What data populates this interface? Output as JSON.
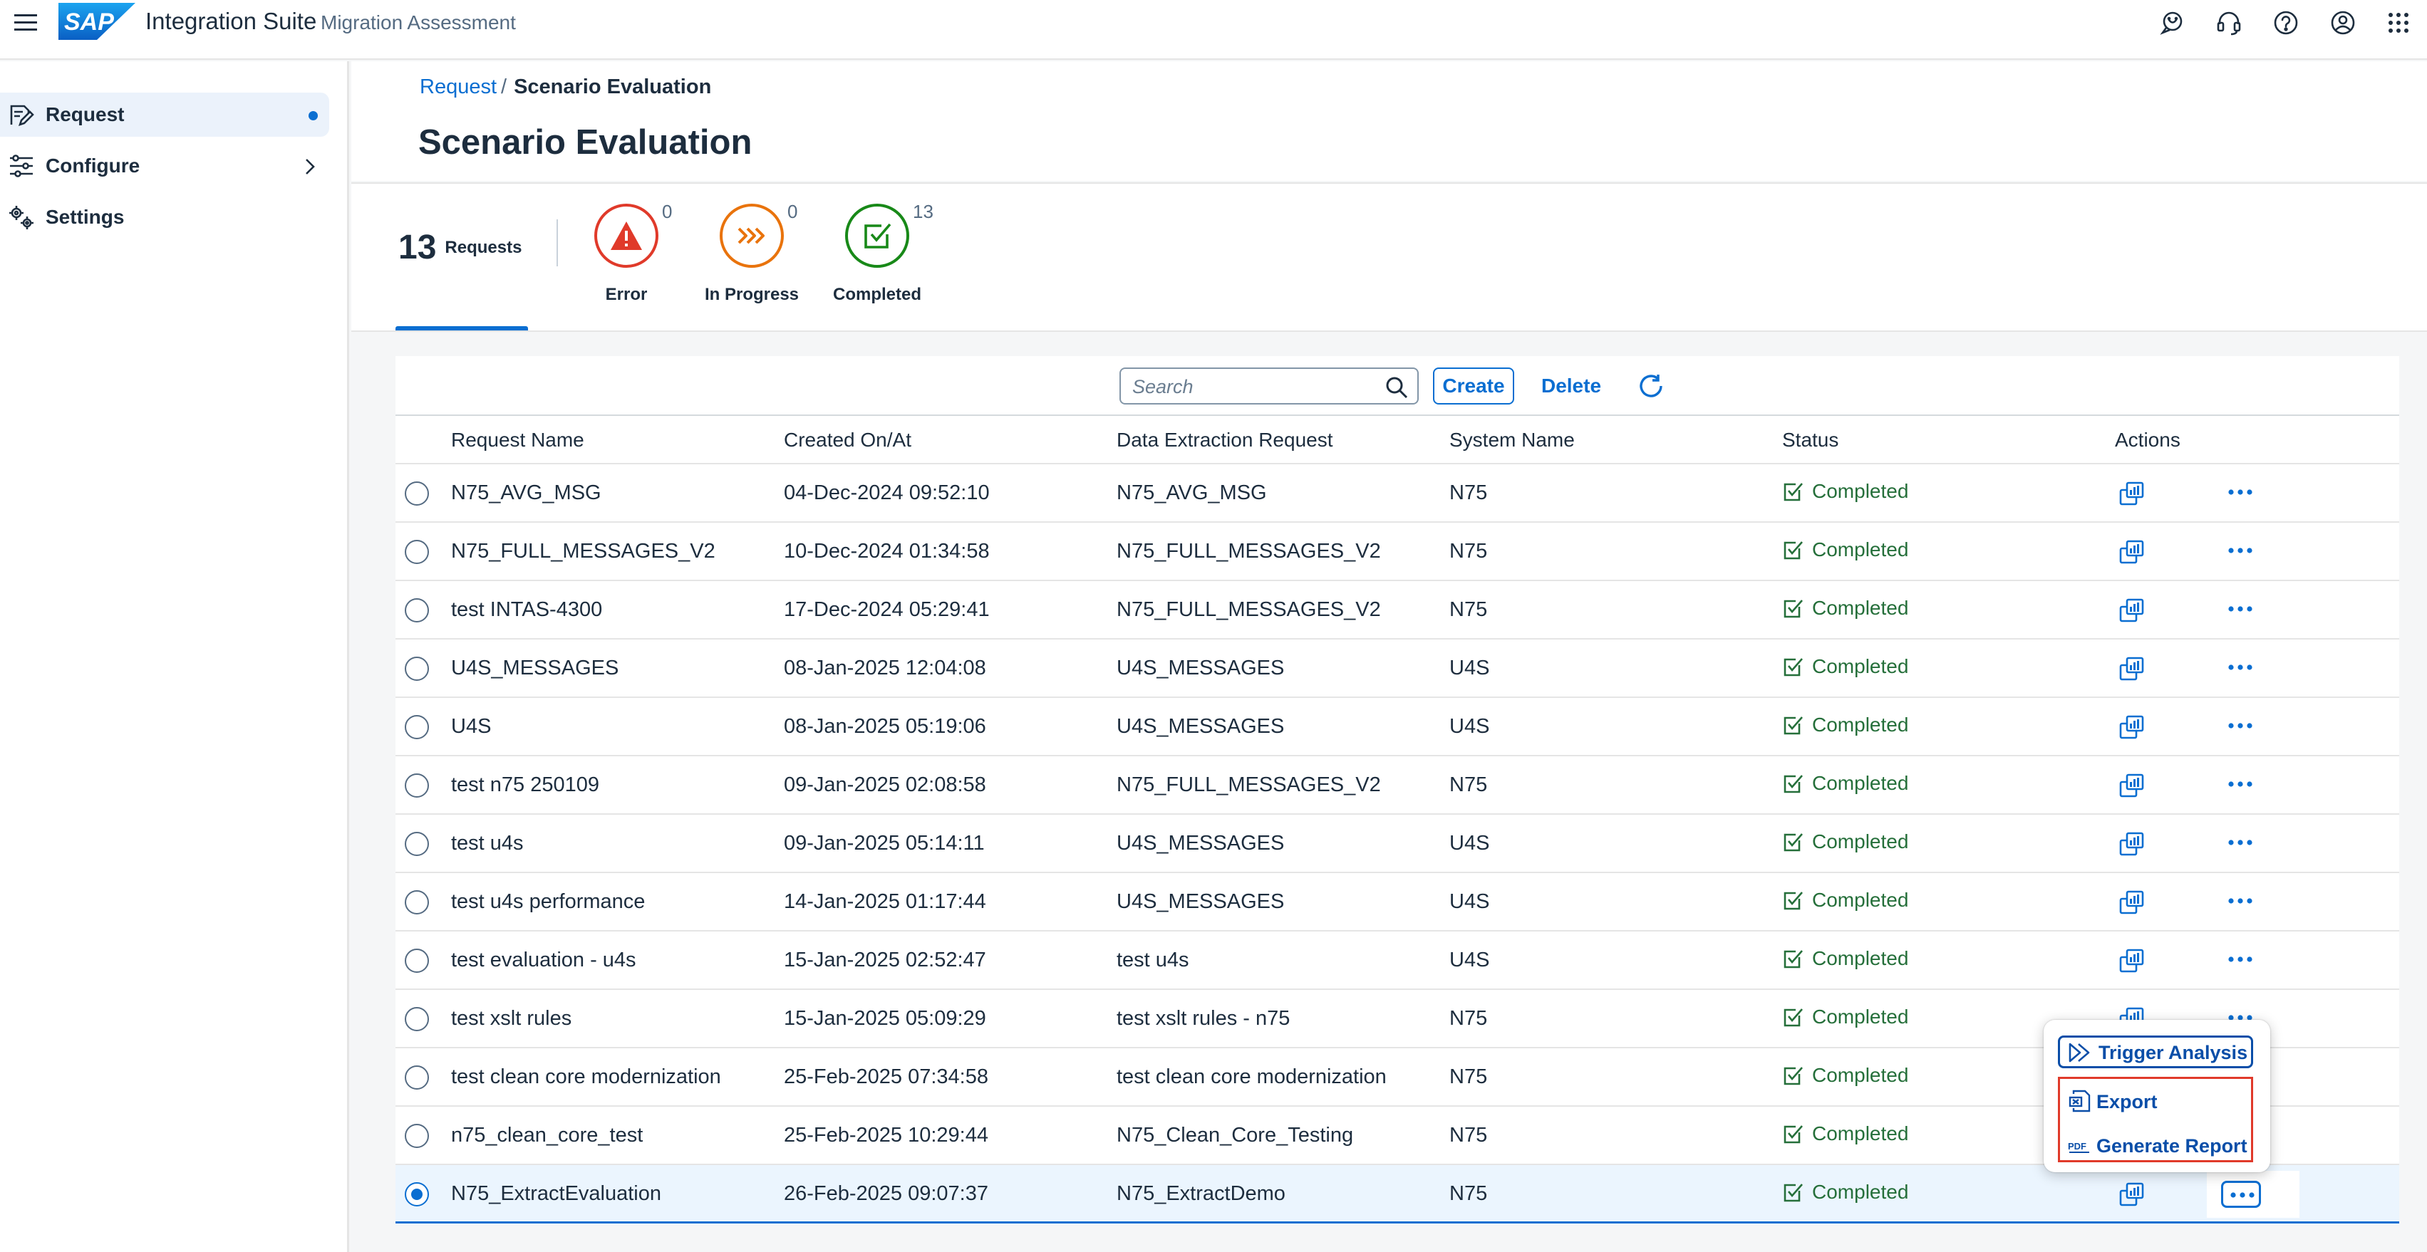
{
  "shell": {
    "logo_text": "SAP",
    "product": "Integration Suite",
    "subproduct": "Migration Assessment",
    "icons": [
      "menu-icon",
      "feedback-icon",
      "support-icon",
      "help-icon",
      "user-profile-icon",
      "product-switch-icon"
    ]
  },
  "sidenav": {
    "items": [
      {
        "label": "Request",
        "icon": "request-icon",
        "selected": true
      },
      {
        "label": "Configure",
        "icon": "configure-icon",
        "expandable": true
      },
      {
        "label": "Settings",
        "icon": "settings-icon"
      }
    ]
  },
  "breadcrumb": {
    "link": "Request",
    "separator": "/",
    "current": "Scenario Evaluation"
  },
  "page_title": "Scenario Evaluation",
  "kpis": {
    "total": {
      "count": "13",
      "label": "Requests"
    },
    "items": [
      {
        "label": "Error",
        "count": "0",
        "color": "#e03a2a",
        "icon": "error-icon"
      },
      {
        "label": "In Progress",
        "count": "0",
        "color": "#e9730c",
        "icon": "in-progress-icon"
      },
      {
        "label": "Completed",
        "count": "13",
        "color": "#188918",
        "icon": "completed-icon"
      }
    ]
  },
  "toolbar": {
    "search_placeholder": "Search",
    "create": "Create",
    "delete": "Delete"
  },
  "table": {
    "columns": [
      "Request Name",
      "Created On/At",
      "Data Extraction Request",
      "System Name",
      "Status",
      "Actions"
    ],
    "rows": [
      {
        "name": "N75_AVG_MSG",
        "created": "04-Dec-2024 09:52:10",
        "extraction": "N75_AVG_MSG",
        "system": "N75",
        "status": "Completed"
      },
      {
        "name": "N75_FULL_MESSAGES_V2",
        "created": "10-Dec-2024 01:34:58",
        "extraction": "N75_FULL_MESSAGES_V2",
        "system": "N75",
        "status": "Completed"
      },
      {
        "name": "test INTAS-4300",
        "created": "17-Dec-2024 05:29:41",
        "extraction": "N75_FULL_MESSAGES_V2",
        "system": "N75",
        "status": "Completed"
      },
      {
        "name": "U4S_MESSAGES",
        "created": "08-Jan-2025 12:04:08",
        "extraction": "U4S_MESSAGES",
        "system": "U4S",
        "status": "Completed"
      },
      {
        "name": "U4S",
        "created": "08-Jan-2025 05:19:06",
        "extraction": "U4S_MESSAGES",
        "system": "U4S",
        "status": "Completed"
      },
      {
        "name": "test n75 250109",
        "created": "09-Jan-2025 02:08:58",
        "extraction": "N75_FULL_MESSAGES_V2",
        "system": "N75",
        "status": "Completed"
      },
      {
        "name": "test u4s",
        "created": "09-Jan-2025 05:14:11",
        "extraction": "U4S_MESSAGES",
        "system": "U4S",
        "status": "Completed"
      },
      {
        "name": "test u4s performance",
        "created": "14-Jan-2025 01:17:44",
        "extraction": "U4S_MESSAGES",
        "system": "U4S",
        "status": "Completed"
      },
      {
        "name": "test evaluation - u4s",
        "created": "15-Jan-2025 02:52:47",
        "extraction": "test u4s",
        "system": "U4S",
        "status": "Completed"
      },
      {
        "name": "test xslt rules",
        "created": "15-Jan-2025 05:09:29",
        "extraction": "test xslt rules - n75",
        "system": "N75",
        "status": "Completed"
      },
      {
        "name": "test clean core modernization",
        "created": "25-Feb-2025 07:34:58",
        "extraction": "test clean core modernization",
        "system": "N75",
        "status": "Completed"
      },
      {
        "name": "n75_clean_core_test",
        "created": "25-Feb-2025 10:29:44",
        "extraction": "N75_Clean_Core_Testing",
        "system": "N75",
        "status": "Completed"
      },
      {
        "name": "N75_ExtractEvaluation",
        "created": "26-Feb-2025 09:07:37",
        "extraction": "N75_ExtractDemo",
        "system": "N75",
        "status": "Completed",
        "selected": true
      }
    ]
  },
  "popover": {
    "items": [
      {
        "label": "Trigger Analysis",
        "icon": "trigger-analysis-icon"
      },
      {
        "label": "Export",
        "icon": "export-icon"
      },
      {
        "label": "Generate Report",
        "icon": "pdf-icon"
      }
    ]
  },
  "colors": {
    "accent": "#0a6ed1",
    "success": "#256f3a",
    "error": "#e03a2a",
    "warning": "#e9730c",
    "positive": "#188918"
  }
}
